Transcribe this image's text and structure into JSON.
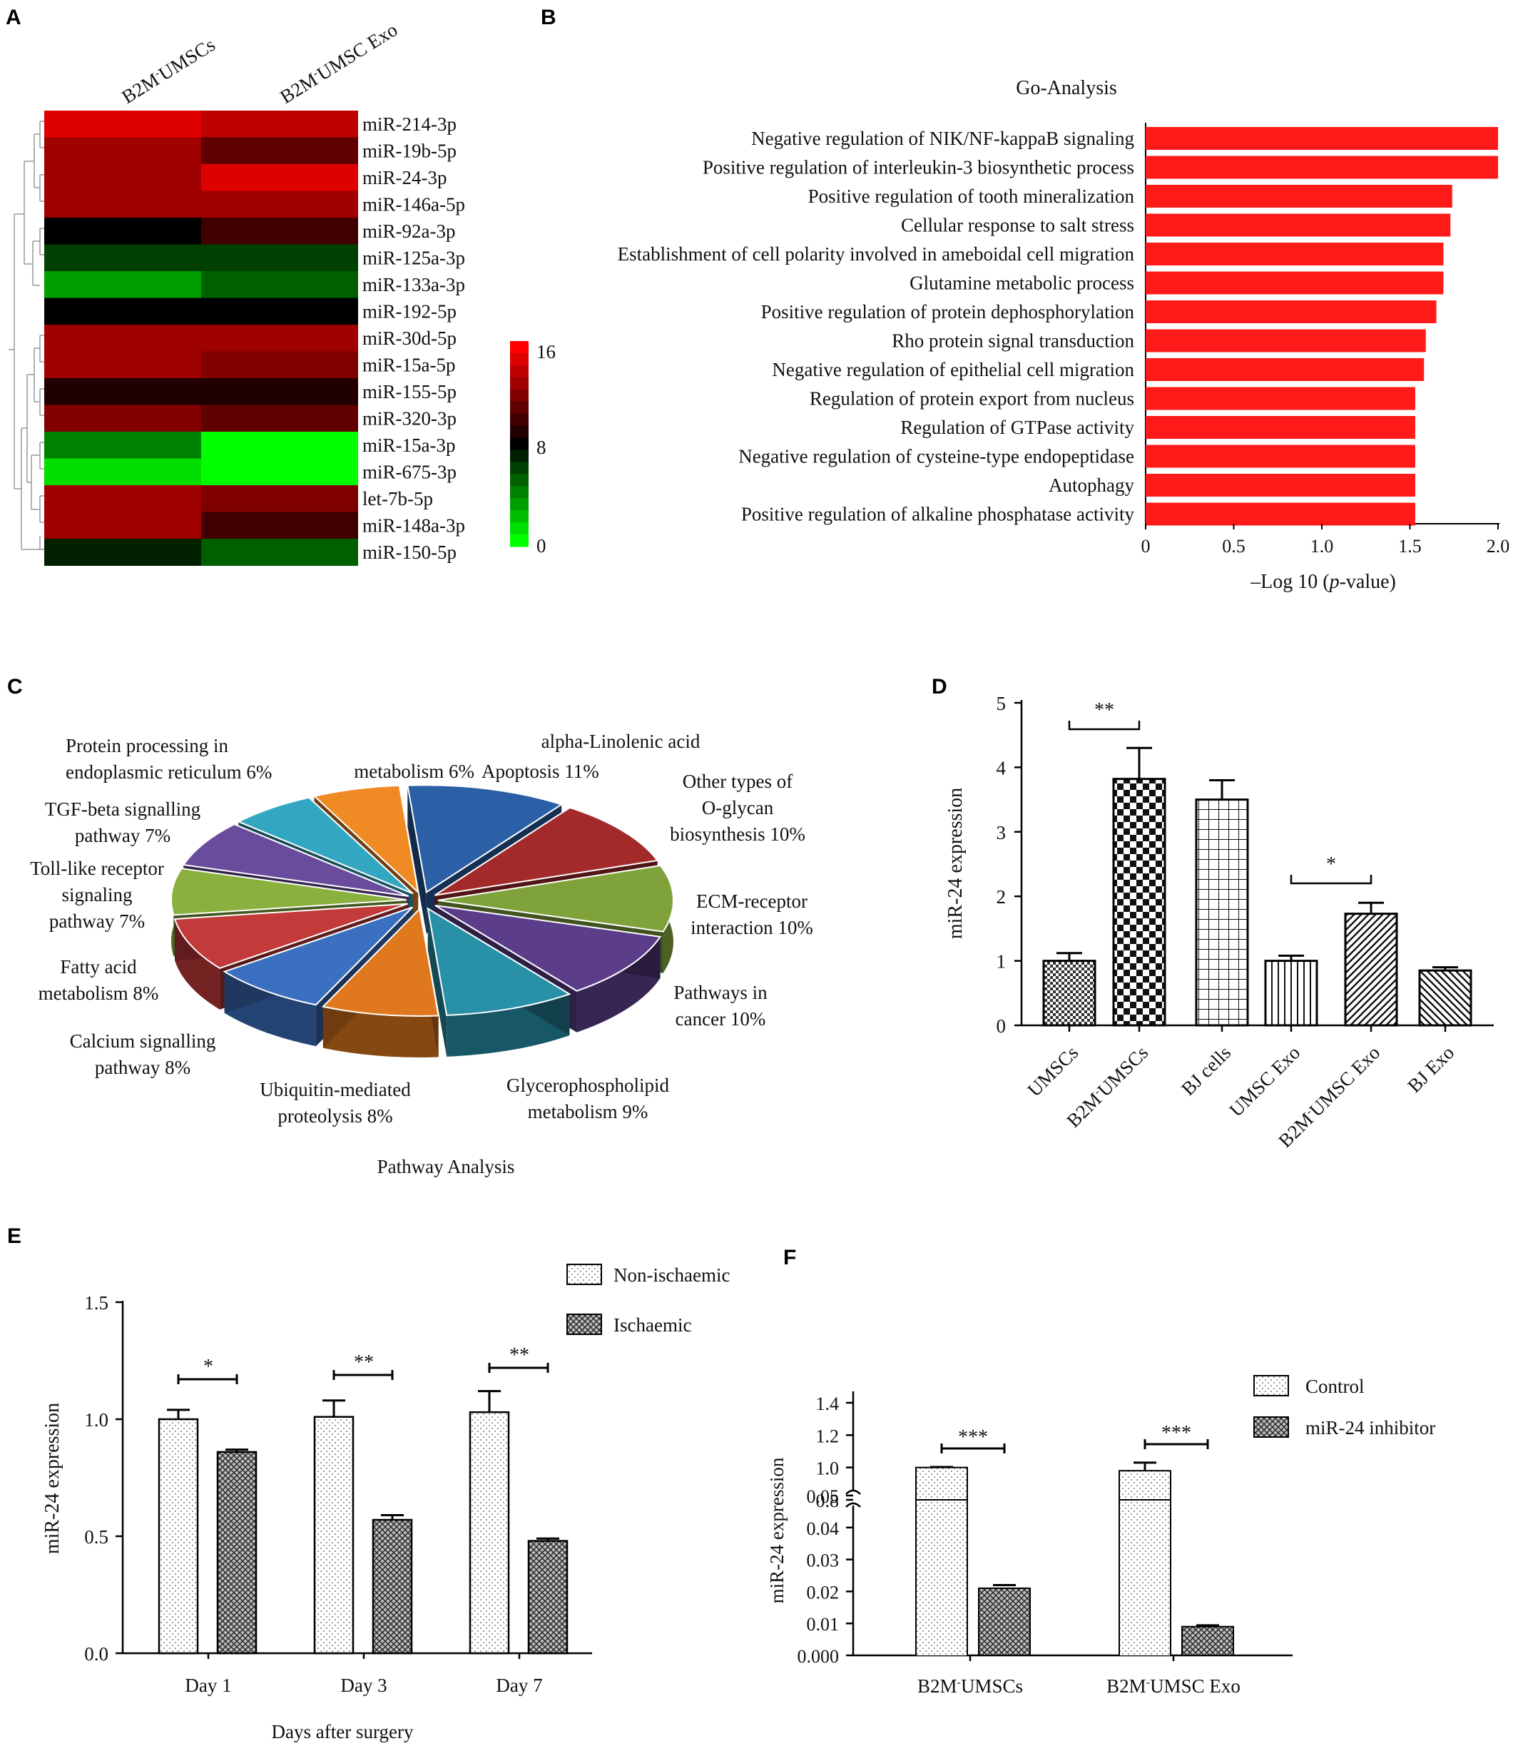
{
  "panel_labels": [
    "A",
    "B",
    "C",
    "D",
    "E",
    "F"
  ],
  "chart_data": [
    {
      "panel": "A",
      "type": "heatmap",
      "columns": [
        "B2M-UMSCs",
        "B2M-UMSC Exo"
      ],
      "rows": [
        "miR-214-3p",
        "miR-19b-5p",
        "miR-24-3p",
        "miR-146a-5p",
        "miR-92a-3p",
        "miR-125a-3p",
        "miR-133a-3p",
        "miR-192-5p",
        "miR-30d-5p",
        "miR-15a-5p",
        "miR-155-5p",
        "miR-320-3p",
        "miR-15a-3p",
        "miR-675-3p",
        "let-7b-5p",
        "miR-148a-3p",
        "miR-150-5p"
      ],
      "values": [
        [
          15,
          14
        ],
        [
          13,
          11
        ],
        [
          13,
          15
        ],
        [
          13,
          13
        ],
        [
          8,
          10
        ],
        [
          6,
          6
        ],
        [
          3,
          5
        ],
        [
          8,
          8
        ],
        [
          13,
          13
        ],
        [
          13,
          12
        ],
        [
          9,
          9
        ],
        [
          12,
          11
        ],
        [
          4,
          0
        ],
        [
          1,
          0
        ],
        [
          13,
          12
        ],
        [
          13,
          10
        ],
        [
          7,
          5
        ]
      ],
      "colorbar": {
        "min": 0,
        "mid": 8,
        "max": 16,
        "ticks": [
          "16",
          "8",
          "0"
        ]
      }
    },
    {
      "panel": "B",
      "type": "bar",
      "orientation": "horizontal",
      "title": "Go-Analysis",
      "xlabel_pre": "–Log 10 (",
      "xlabel_italic": "p",
      "xlabel_post": "-value)",
      "xlim": [
        0,
        2.0
      ],
      "xticks": [
        "0",
        "0.5",
        "1.0",
        "1.5",
        "2.0"
      ],
      "categories": [
        "Negative regulation of NIK/NF-kappaB signaling",
        "Positive regulation of interleukin-3 biosynthetic process",
        "Positive regulation of tooth mineralization",
        "Cellular response to salt stress",
        "Establishment of cell polarity involved in ameboidal cell migration",
        "Glutamine metabolic process",
        "Positive regulation of protein dephosphorylation",
        "Rho protein signal transduction",
        "Negative regulation of epithelial cell migration",
        "Regulation of protein export from nucleus",
        "Regulation of GTPase activity",
        "Negative regulation of cysteine-type endopeptidase",
        "Autophagy",
        "Positive regulation of alkaline phosphatase activity"
      ],
      "values": [
        2.0,
        2.0,
        1.74,
        1.73,
        1.69,
        1.69,
        1.65,
        1.59,
        1.58,
        1.53,
        1.53,
        1.53,
        1.53,
        1.53
      ],
      "color": "#ff1a1a"
    },
    {
      "panel": "C",
      "type": "pie",
      "title": "Pathway Analysis",
      "slices": [
        {
          "label": "Apoptosis 11%",
          "value": 11,
          "color": "#2b5fa6"
        },
        {
          "label": "Other types of O-glycan biosynthesis 10%",
          "value": 10,
          "color": "#a32a2a"
        },
        {
          "label": "ECM-receptor interaction 10%",
          "value": 10,
          "color": "#7fa33a"
        },
        {
          "label": "Pathways in cancer 10%",
          "value": 10,
          "color": "#5b3d8a"
        },
        {
          "label": "Glycerophospholipid metabolism 9%",
          "value": 9,
          "color": "#2891a8"
        },
        {
          "label": "Ubiquitin-mediated proteolysis 8%",
          "value": 8,
          "color": "#e0781e"
        },
        {
          "label": "Calcium signalling pathway 8%",
          "value": 8,
          "color": "#3b6fc0"
        },
        {
          "label": "Fatty acid metabolism 8%",
          "value": 8,
          "color": "#c23a3a"
        },
        {
          "label": "Toll-like receptor signaling pathway 7%",
          "value": 7,
          "color": "#8ab03e"
        },
        {
          "label": "TGF-beta signalling pathway 7%",
          "value": 7,
          "color": "#6a4c9c"
        },
        {
          "label": "Protein processing in endoplasmic reticulum 6%",
          "value": 6,
          "color": "#33a7c2"
        },
        {
          "label": "alpha-Linolenic acid metabolism 6%",
          "value": 6,
          "color": "#f08a24"
        }
      ]
    },
    {
      "panel": "D",
      "type": "bar",
      "ylabel": "miR-24 expression",
      "ylim": [
        0,
        5
      ],
      "yticks": [
        "0",
        "1",
        "2",
        "3",
        "4",
        "5"
      ],
      "categories": [
        "UMSCs",
        "B2M-UMSCs",
        "BJ cells",
        "UMSC Exo",
        "B2M-UMSC Exo",
        "BJ Exo"
      ],
      "values": [
        1.0,
        3.82,
        3.5,
        1.0,
        1.73,
        0.85
      ],
      "errors": [
        0.12,
        0.48,
        0.3,
        0.08,
        0.17,
        0.05
      ],
      "significance": [
        {
          "from": 0,
          "to": 1,
          "text": "**"
        },
        {
          "from": 3,
          "to": 4,
          "text": "*"
        }
      ]
    },
    {
      "panel": "E",
      "type": "bar",
      "xlabel": "Days after surgery",
      "ylabel": "miR-24 expression",
      "ylim": [
        0,
        1.5
      ],
      "yticks": [
        "0.0",
        "0.5",
        "1.0",
        "1.5"
      ],
      "categories": [
        "Day 1",
        "Day 3",
        "Day 7"
      ],
      "series": [
        {
          "name": "Non-ischaemic",
          "values": [
            1.0,
            1.01,
            1.03
          ],
          "errors": [
            0.04,
            0.07,
            0.09
          ]
        },
        {
          "name": "Ischaemic",
          "values": [
            0.86,
            0.57,
            0.48
          ],
          "errors": [
            0.01,
            0.02,
            0.01
          ]
        }
      ],
      "significance": [
        "*",
        "**",
        "**"
      ]
    },
    {
      "panel": "F",
      "type": "bar",
      "ylabel": "miR-24 expression",
      "broken_axis": {
        "lower": [
          0,
          0.05
        ],
        "upper": [
          0.8,
          1.4
        ]
      },
      "yticks_lower": [
        "0.000",
        "0.01",
        "0.02",
        "0.03",
        "0.04",
        "0.05"
      ],
      "yticks_upper": [
        "0.8",
        "1.0",
        "1.2",
        "1.4"
      ],
      "categories": [
        "B2M-UMSCs",
        "B2M-UMSC Exo"
      ],
      "series": [
        {
          "name": "Control",
          "values": [
            1.0,
            0.98
          ],
          "errors": [
            0.003,
            0.05
          ]
        },
        {
          "name": "miR-24 inhibitor",
          "values": [
            0.021,
            0.009
          ],
          "errors": [
            0.001,
            0.0004
          ]
        }
      ],
      "significance": [
        "***",
        "***"
      ]
    }
  ]
}
